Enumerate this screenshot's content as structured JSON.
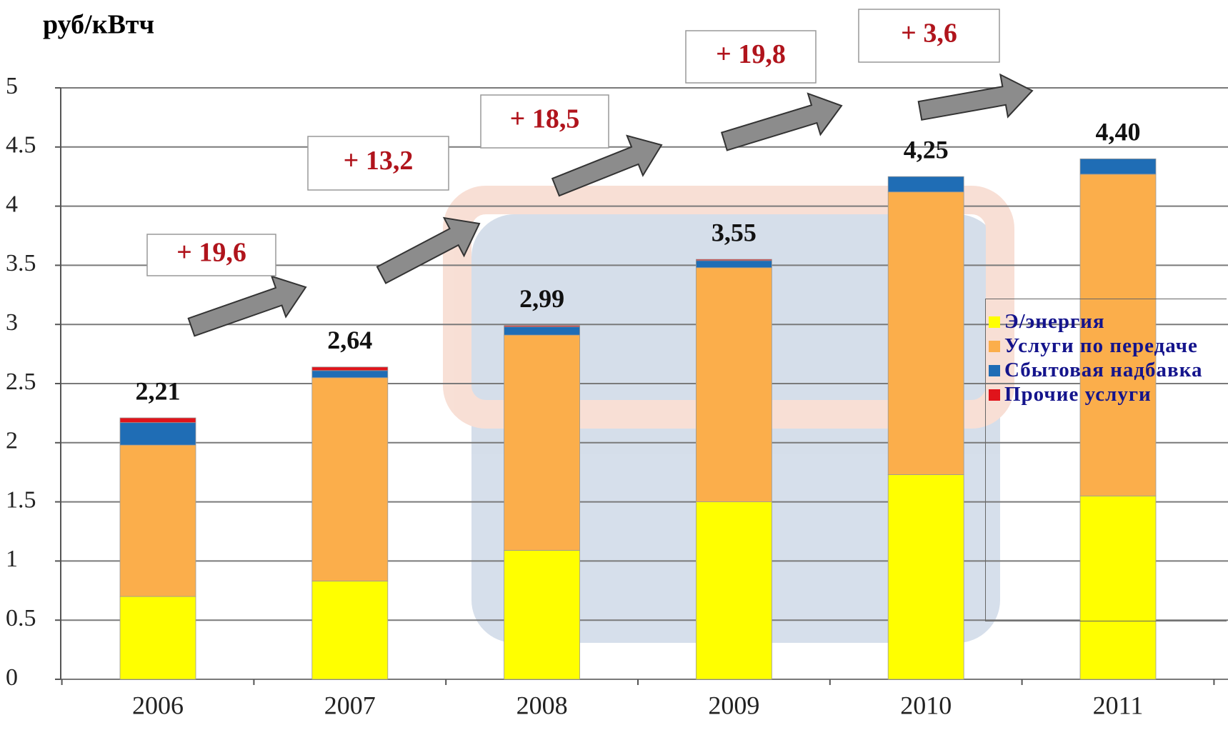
{
  "chart_data": {
    "type": "stacked_bar",
    "y_label": "руб/кВтч",
    "categories": [
      "2006",
      "2007",
      "2008",
      "2009",
      "2010",
      "2011"
    ],
    "series": [
      {
        "name": "Э/энергия",
        "color": "#ffff00",
        "values": [
          0.7,
          0.83,
          1.09,
          1.5,
          1.73,
          1.55
        ]
      },
      {
        "name": "Услуги по передаче",
        "color": "#fbae4b",
        "values": [
          1.28,
          1.72,
          1.82,
          1.98,
          2.39,
          2.72
        ]
      },
      {
        "name": "Сбытовая надбавка",
        "color": "#1f6db5",
        "values": [
          0.19,
          0.06,
          0.07,
          0.06,
          0.13,
          0.13
        ]
      },
      {
        "name": "Прочие услуги",
        "color": "#e0141b",
        "values": [
          0.04,
          0.03,
          0.01,
          0.01,
          0,
          0
        ]
      }
    ],
    "totals": [
      2.21,
      2.64,
      2.99,
      3.55,
      4.25,
      4.4
    ],
    "total_labels": [
      "2,21",
      "2,64",
      "2,99",
      "3,55",
      "4,25",
      "4,40"
    ],
    "annotations": [
      "+ 19,6",
      "+ 13,2",
      "+ 18,5",
      "+ 19,8",
      "+ 3,6"
    ],
    "ylim": [
      0,
      5
    ],
    "yticks": [
      0,
      0.5,
      1,
      1.5,
      2,
      2.5,
      3,
      3.5,
      4,
      4.5,
      5
    ],
    "grid": true
  }
}
